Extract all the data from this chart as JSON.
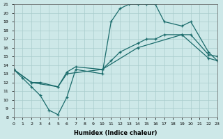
{
  "xlabel": "Humidex (Indice chaleur)",
  "bg_color": "#cde8e8",
  "grid_color": "#a8cccc",
  "line_color": "#1a6b6b",
  "curve1_x": [
    0,
    1,
    2,
    3,
    4,
    5,
    6,
    7,
    10,
    11,
    12,
    13,
    14,
    15,
    16,
    17,
    19,
    20,
    22,
    23
  ],
  "curve1_y": [
    13.5,
    12.5,
    11.5,
    10.5,
    8.8,
    8.3,
    10.3,
    13.5,
    13.0,
    19.0,
    20.5,
    21.0,
    21.0,
    21.0,
    21.0,
    19.0,
    18.5,
    19.0,
    15.5,
    14.5
  ],
  "curve2_x": [
    0,
    2,
    3,
    5,
    6,
    7,
    10,
    11,
    12,
    14,
    15,
    16,
    17,
    19,
    20,
    22,
    23
  ],
  "curve2_y": [
    13.5,
    12.0,
    12.0,
    11.5,
    13.2,
    13.8,
    13.5,
    14.5,
    15.5,
    16.5,
    17.0,
    17.0,
    17.5,
    17.5,
    17.5,
    15.2,
    15.0
  ],
  "curve3_x": [
    0,
    2,
    5,
    6,
    10,
    14,
    19,
    22,
    23
  ],
  "curve3_y": [
    13.5,
    12.0,
    11.5,
    13.0,
    13.5,
    16.0,
    17.5,
    14.8,
    14.5
  ],
  "xlim": [
    0,
    23
  ],
  "ylim": [
    8,
    21
  ],
  "xticks": [
    0,
    1,
    2,
    3,
    4,
    5,
    6,
    7,
    8,
    9,
    10,
    11,
    12,
    13,
    14,
    15,
    16,
    17,
    18,
    19,
    20,
    21,
    22,
    23
  ],
  "yticks": [
    8,
    9,
    10,
    11,
    12,
    13,
    14,
    15,
    16,
    17,
    18,
    19,
    20,
    21
  ]
}
